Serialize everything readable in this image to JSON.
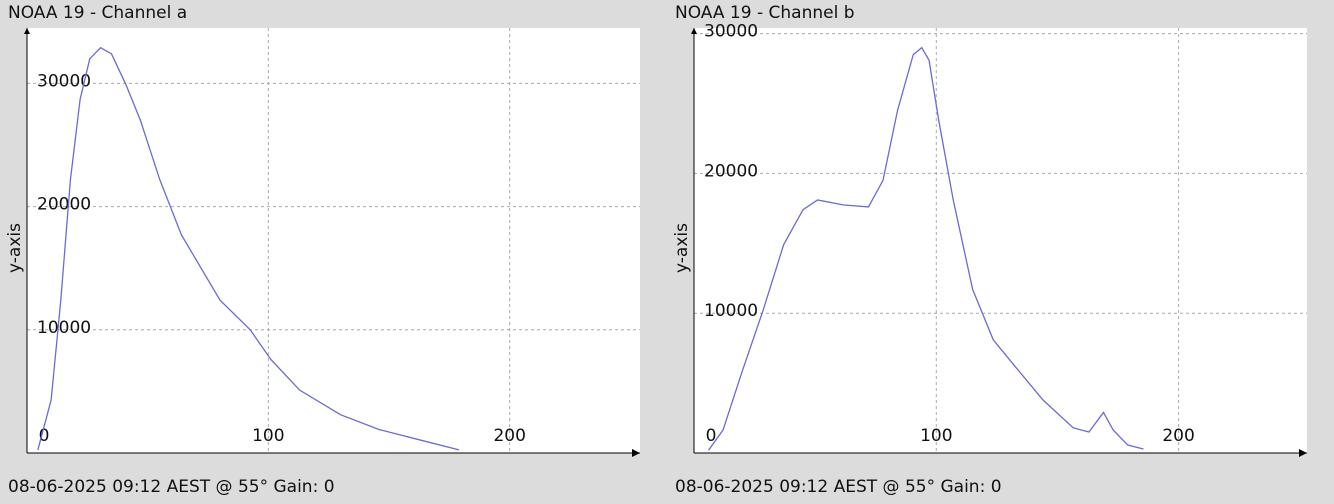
{
  "chart_data": [
    {
      "type": "line",
      "title": "NOAA 19 - Channel a",
      "y_label": "y-axis",
      "footer": "08-06-2025 09:12 AEST @ 55° Gain: 0",
      "xlim": [
        0,
        254
      ],
      "ylim": [
        0,
        34500
      ],
      "xticks": [
        0,
        100,
        200
      ],
      "yticks": [
        10000,
        20000,
        30000
      ],
      "grid": true,
      "series": [
        {
          "name": "Channel a",
          "color": "#6a6ad8",
          "x": [
            4.5,
            10,
            14,
            18,
            22,
            26,
            30.5,
            35,
            41,
            47,
            55,
            64,
            80,
            92.5,
            101,
            113,
            130,
            146,
            163,
            179
          ],
          "values": [
            250,
            4300,
            12400,
            22200,
            28700,
            32000,
            32900,
            32400,
            29900,
            27000,
            22200,
            17700,
            12400,
            10000,
            7600,
            5100,
            3100,
            1900,
            1050,
            250
          ]
        }
      ]
    },
    {
      "type": "line",
      "title": "NOAA 19 - Channel b",
      "y_label": "y-axis",
      "footer": "08-06-2025 09:12 AEST @ 55° Gain: 0",
      "xlim": [
        0,
        253
      ],
      "ylim": [
        0,
        30400
      ],
      "xticks": [
        0,
        100,
        200
      ],
      "yticks": [
        10000,
        20000,
        30000
      ],
      "grid": true,
      "series": [
        {
          "name": "Channel b",
          "color": "#6a6ad8",
          "x": [
            6,
            12,
            20,
            28.5,
            37,
            45,
            51,
            61.5,
            72,
            78,
            84,
            90.5,
            94,
            97,
            101,
            107,
            115,
            123.5,
            132,
            144,
            156.5,
            163,
            169,
            173,
            179,
            185.5
          ],
          "values": [
            200,
            1650,
            5900,
            10200,
            14900,
            17400,
            18100,
            17750,
            17600,
            19500,
            24500,
            28500,
            29000,
            28100,
            23800,
            18100,
            11700,
            8100,
            6300,
            3800,
            1800,
            1500,
            2900,
            1650,
            570,
            290
          ]
        }
      ]
    }
  ]
}
